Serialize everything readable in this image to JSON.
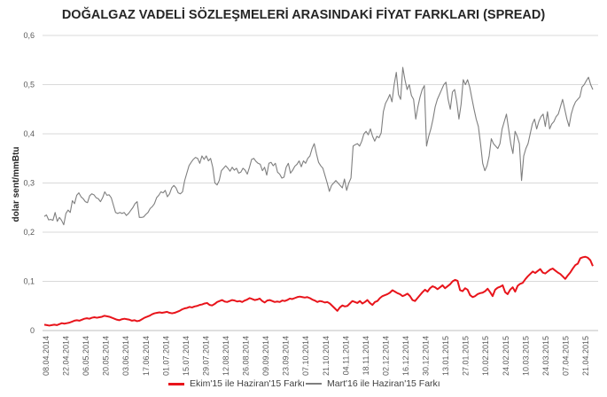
{
  "chart_data": {
    "type": "line",
    "title": "DOĞALGAZ VADELİ SÖZLEŞMELERİ ARASINDAKİ FİYAT FARKLARI (SPREAD)",
    "ylabel": "dolar sent/mmBtu",
    "xlabel": "",
    "ylim": [
      0,
      0.6
    ],
    "yticks": [
      "0",
      "0,1",
      "0,2",
      "0,3",
      "0,4",
      "0,5",
      "0,6"
    ],
    "grid": true,
    "legend_position": "bottom",
    "x_tick_labels": [
      "08.04.2014",
      "22.04.2014",
      "06.05.2014",
      "20.05.2014",
      "03.06.2014",
      "17.06.2014",
      "01.07.2014",
      "15.07.2014",
      "29.07.2014",
      "12.08.2014",
      "26.08.2014",
      "09.09.2014",
      "23.09.2014",
      "07.10.2014",
      "21.10.2014",
      "04.11.2014",
      "18.11.2014",
      "02.12.2014",
      "16.12.2014",
      "30.12.2014",
      "13.01.2015",
      "27.01.2015",
      "10.02.2015",
      "24.02.2015",
      "10.03.2015",
      "24.03.2015",
      "07.04.2015",
      "21.04.2015"
    ],
    "series": [
      {
        "name": "Ekim'15 ile Haziran'15 Farkı",
        "color": "#e8141b",
        "values": [
          0.012,
          0.011,
          0.01,
          0.011,
          0.012,
          0.011,
          0.013,
          0.015,
          0.014,
          0.015,
          0.016,
          0.018,
          0.02,
          0.021,
          0.02,
          0.022,
          0.024,
          0.025,
          0.024,
          0.026,
          0.027,
          0.026,
          0.027,
          0.028,
          0.03,
          0.029,
          0.028,
          0.026,
          0.024,
          0.022,
          0.021,
          0.023,
          0.024,
          0.023,
          0.022,
          0.02,
          0.021,
          0.019,
          0.02,
          0.023,
          0.026,
          0.028,
          0.03,
          0.033,
          0.035,
          0.036,
          0.037,
          0.036,
          0.037,
          0.038,
          0.036,
          0.035,
          0.036,
          0.038,
          0.04,
          0.043,
          0.045,
          0.046,
          0.048,
          0.047,
          0.049,
          0.05,
          0.052,
          0.053,
          0.055,
          0.056,
          0.052,
          0.051,
          0.054,
          0.058,
          0.06,
          0.062,
          0.059,
          0.058,
          0.06,
          0.062,
          0.061,
          0.059,
          0.06,
          0.058,
          0.061,
          0.063,
          0.066,
          0.064,
          0.062,
          0.063,
          0.065,
          0.06,
          0.057,
          0.061,
          0.062,
          0.06,
          0.058,
          0.059,
          0.058,
          0.061,
          0.06,
          0.062,
          0.065,
          0.064,
          0.066,
          0.068,
          0.069,
          0.068,
          0.067,
          0.068,
          0.066,
          0.063,
          0.061,
          0.058,
          0.06,
          0.059,
          0.057,
          0.058,
          0.055,
          0.05,
          0.045,
          0.04,
          0.047,
          0.051,
          0.049,
          0.05,
          0.055,
          0.06,
          0.058,
          0.056,
          0.06,
          0.055,
          0.058,
          0.062,
          0.056,
          0.052,
          0.058,
          0.06,
          0.066,
          0.07,
          0.072,
          0.074,
          0.077,
          0.082,
          0.079,
          0.076,
          0.074,
          0.07,
          0.072,
          0.075,
          0.07,
          0.062,
          0.06,
          0.066,
          0.072,
          0.078,
          0.083,
          0.079,
          0.086,
          0.09,
          0.088,
          0.084,
          0.088,
          0.092,
          0.086,
          0.09,
          0.094,
          0.1,
          0.103,
          0.101,
          0.082,
          0.08,
          0.086,
          0.083,
          0.072,
          0.068,
          0.07,
          0.074,
          0.076,
          0.077,
          0.08,
          0.085,
          0.078,
          0.07,
          0.083,
          0.087,
          0.089,
          0.092,
          0.078,
          0.074,
          0.083,
          0.088,
          0.079,
          0.091,
          0.095,
          0.097,
          0.104,
          0.11,
          0.115,
          0.12,
          0.117,
          0.121,
          0.125,
          0.118,
          0.116,
          0.12,
          0.124,
          0.126,
          0.122,
          0.118,
          0.115,
          0.11,
          0.105,
          0.112,
          0.118,
          0.126,
          0.133,
          0.136,
          0.147,
          0.149,
          0.15,
          0.148,
          0.143,
          0.131
        ]
      },
      {
        "name": "Mart'16 ile Haziran'15 Farkı",
        "color": "#7f7f7f",
        "values": [
          0.232,
          0.235,
          0.225,
          0.226,
          0.224,
          0.24,
          0.222,
          0.23,
          0.224,
          0.215,
          0.238,
          0.245,
          0.24,
          0.264,
          0.258,
          0.275,
          0.28,
          0.272,
          0.268,
          0.262,
          0.26,
          0.274,
          0.278,
          0.276,
          0.27,
          0.268,
          0.262,
          0.27,
          0.282,
          0.275,
          0.276,
          0.27,
          0.255,
          0.24,
          0.238,
          0.24,
          0.238,
          0.24,
          0.234,
          0.238,
          0.244,
          0.25,
          0.258,
          0.262,
          0.23,
          0.23,
          0.231,
          0.236,
          0.24,
          0.248,
          0.252,
          0.258,
          0.27,
          0.275,
          0.282,
          0.28,
          0.285,
          0.272,
          0.278,
          0.29,
          0.295,
          0.29,
          0.28,
          0.278,
          0.282,
          0.305,
          0.32,
          0.335,
          0.342,
          0.348,
          0.352,
          0.35,
          0.34,
          0.355,
          0.348,
          0.355,
          0.345,
          0.35,
          0.332,
          0.3,
          0.296,
          0.305,
          0.325,
          0.33,
          0.335,
          0.33,
          0.324,
          0.332,
          0.326,
          0.33,
          0.32,
          0.322,
          0.33,
          0.326,
          0.318,
          0.332,
          0.348,
          0.35,
          0.344,
          0.34,
          0.338,
          0.325,
          0.332,
          0.316,
          0.34,
          0.342,
          0.335,
          0.34,
          0.322,
          0.318,
          0.31,
          0.312,
          0.332,
          0.34,
          0.32,
          0.326,
          0.334,
          0.338,
          0.345,
          0.333,
          0.345,
          0.34,
          0.35,
          0.355,
          0.37,
          0.38,
          0.36,
          0.342,
          0.335,
          0.33,
          0.315,
          0.3,
          0.283,
          0.295,
          0.3,
          0.305,
          0.3,
          0.295,
          0.29,
          0.308,
          0.285,
          0.3,
          0.31,
          0.375,
          0.378,
          0.38,
          0.375,
          0.385,
          0.4,
          0.405,
          0.398,
          0.41,
          0.395,
          0.385,
          0.395,
          0.392,
          0.402,
          0.445,
          0.462,
          0.47,
          0.48,
          0.465,
          0.5,
          0.525,
          0.48,
          0.47,
          0.535,
          0.51,
          0.49,
          0.5,
          0.478,
          0.47,
          0.43,
          0.455,
          0.475,
          0.49,
          0.498,
          0.375,
          0.395,
          0.41,
          0.43,
          0.455,
          0.47,
          0.48,
          0.49,
          0.5,
          0.505,
          0.47,
          0.45,
          0.485,
          0.49,
          0.465,
          0.43,
          0.46,
          0.51,
          0.5,
          0.51,
          0.495,
          0.472,
          0.45,
          0.43,
          0.415,
          0.38,
          0.34,
          0.325,
          0.335,
          0.355,
          0.39,
          0.38,
          0.375,
          0.37,
          0.38,
          0.41,
          0.425,
          0.44,
          0.41,
          0.38,
          0.36,
          0.405,
          0.395,
          0.38,
          0.305,
          0.355,
          0.37,
          0.38,
          0.4,
          0.42,
          0.43,
          0.41,
          0.425,
          0.435,
          0.44,
          0.415,
          0.445,
          0.41,
          0.42,
          0.425,
          0.435,
          0.44,
          0.455,
          0.47,
          0.45,
          0.43,
          0.415,
          0.44,
          0.455,
          0.465,
          0.47,
          0.475,
          0.495,
          0.5,
          0.508,
          0.515,
          0.5,
          0.49
        ]
      }
    ]
  }
}
